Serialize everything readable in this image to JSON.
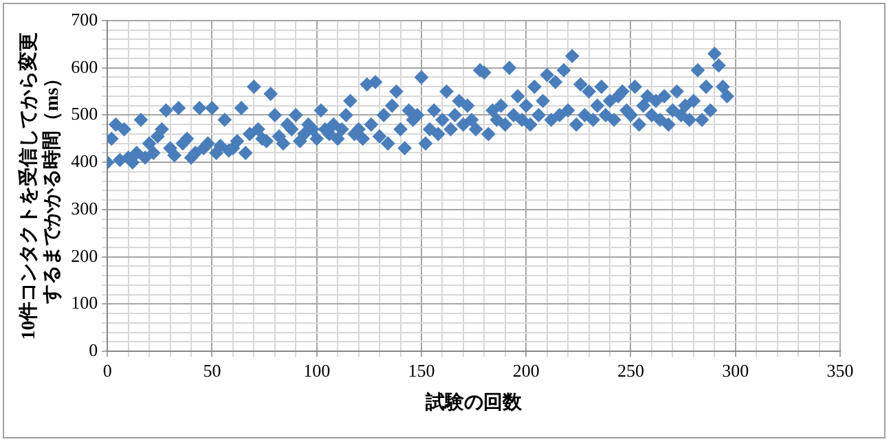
{
  "chart_data": {
    "type": "scatter",
    "xlabel": "試験の回数",
    "ylabel": "10件コンタクトを受信してから変更するまでかかる時間（ms）",
    "marker": "diamond",
    "grid": true,
    "legend": false,
    "xlim": [
      0,
      350
    ],
    "ylim": [
      0,
      700
    ],
    "xticks": [
      0,
      {
        "value": 10,
        "label": null
      },
      {
        "value": 20,
        "label": null
      },
      {
        "value": 30,
        "label": null
      },
      {
        "value": 40,
        "label": null
      },
      50,
      {
        "value": 60,
        "label": null
      },
      {
        "value": 70,
        "label": null
      },
      {
        "value": 80,
        "label": null
      },
      {
        "value": 90,
        "label": null
      },
      100,
      {
        "value": 110,
        "label": null
      },
      {
        "value": 120,
        "label": null
      },
      {
        "value": 130,
        "label": null
      },
      {
        "value": 140,
        "label": null
      },
      150,
      {
        "value": 160,
        "label": null
      },
      {
        "value": 170,
        "label": null
      },
      {
        "value": 180,
        "label": null
      },
      {
        "value": 190,
        "label": null
      },
      200,
      {
        "value": 210,
        "label": null
      },
      {
        "value": 220,
        "label": null
      },
      {
        "value": 230,
        "label": null
      },
      {
        "value": 240,
        "label": null
      },
      250,
      {
        "value": 260,
        "label": null
      },
      {
        "value": 270,
        "label": null
      },
      {
        "value": 280,
        "label": null
      },
      {
        "value": 290,
        "label": null
      },
      300,
      {
        "value": 310,
        "label": null
      },
      {
        "value": 320,
        "label": null
      },
      {
        "value": 330,
        "label": null
      },
      {
        "value": 340,
        "label": null
      },
      350
    ],
    "yticks": [
      0,
      {
        "value": 20,
        "label": null
      },
      {
        "value": 40,
        "label": null
      },
      {
        "value": 60,
        "label": null
      },
      {
        "value": 80,
        "label": null
      },
      100,
      {
        "value": 120,
        "label": null
      },
      {
        "value": 140,
        "label": null
      },
      {
        "value": 160,
        "label": null
      },
      {
        "value": 180,
        "label": null
      },
      200,
      {
        "value": 220,
        "label": null
      },
      {
        "value": 240,
        "label": null
      },
      {
        "value": 260,
        "label": null
      },
      {
        "value": 280,
        "label": null
      },
      300,
      {
        "value": 320,
        "label": null
      },
      {
        "value": 340,
        "label": null
      },
      {
        "value": 360,
        "label": null
      },
      {
        "value": 380,
        "label": null
      },
      400,
      {
        "value": 420,
        "label": null
      },
      {
        "value": 440,
        "label": null
      },
      {
        "value": 460,
        "label": null
      },
      {
        "value": 480,
        "label": null
      },
      500,
      {
        "value": 520,
        "label": null
      },
      {
        "value": 540,
        "label": null
      },
      {
        "value": 560,
        "label": null
      },
      {
        "value": 580,
        "label": null
      },
      600,
      {
        "value": 620,
        "label": null
      },
      {
        "value": 640,
        "label": null
      },
      {
        "value": 660,
        "label": null
      },
      {
        "value": 680,
        "label": null
      },
      700
    ],
    "series": [
      {
        "color": "#4a7ebb",
        "x": [
          0,
          2,
          4,
          6,
          8,
          10,
          12,
          14,
          16,
          18,
          20,
          22,
          24,
          26,
          28,
          30,
          32,
          34,
          36,
          38,
          40,
          42,
          44,
          46,
          48,
          50,
          52,
          54,
          56,
          58,
          60,
          62,
          64,
          66,
          68,
          70,
          72,
          74,
          76,
          78,
          80,
          82,
          84,
          86,
          88,
          90,
          92,
          94,
          96,
          98,
          100,
          102,
          104,
          106,
          108,
          110,
          112,
          114,
          116,
          118,
          120,
          122,
          124,
          126,
          128,
          130,
          132,
          134,
          136,
          138,
          140,
          142,
          144,
          146,
          148,
          150,
          152,
          154,
          156,
          158,
          160,
          162,
          164,
          166,
          168,
          170,
          172,
          174,
          176,
          178,
          180,
          182,
          184,
          186,
          188,
          190,
          192,
          194,
          196,
          198,
          200,
          202,
          204,
          206,
          208,
          210,
          212,
          214,
          216,
          218,
          220,
          222,
          224,
          226,
          228,
          230,
          232,
          234,
          236,
          238,
          240,
          242,
          244,
          246,
          248,
          250,
          252,
          254,
          256,
          258,
          260,
          262,
          264,
          266,
          268,
          270,
          272,
          274,
          276,
          278,
          280,
          282,
          284,
          286,
          288,
          290,
          292,
          294,
          296
        ],
        "values": [
          400,
          450,
          480,
          405,
          470,
          410,
          400,
          420,
          490,
          410,
          440,
          420,
          455,
          470,
          510,
          430,
          415,
          515,
          440,
          450,
          410,
          420,
          515,
          430,
          440,
          515,
          420,
          435,
          490,
          425,
          430,
          445,
          515,
          420,
          460,
          560,
          470,
          450,
          445,
          545,
          500,
          455,
          440,
          480,
          470,
          500,
          445,
          460,
          480,
          470,
          450,
          510,
          470,
          460,
          480,
          450,
          470,
          500,
          530,
          460,
          470,
          450,
          565,
          480,
          570,
          455,
          500,
          440,
          520,
          550,
          470,
          430,
          510,
          490,
          500,
          580,
          440,
          470,
          510,
          460,
          490,
          550,
          470,
          500,
          530,
          480,
          520,
          490,
          470,
          595,
          590,
          460,
          510,
          490,
          520,
          480,
          600,
          500,
          540,
          490,
          520,
          480,
          560,
          500,
          530,
          585,
          490,
          570,
          500,
          595,
          510,
          625,
          480,
          565,
          500,
          550,
          490,
          520,
          560,
          500,
          530,
          490,
          540,
          550,
          510,
          500,
          560,
          480,
          520,
          540,
          500,
          530,
          490,
          540,
          480,
          510,
          550,
          500,
          520,
          490,
          530,
          595,
          490,
          560,
          510,
          630,
          605,
          560,
          540
        ]
      }
    ]
  }
}
